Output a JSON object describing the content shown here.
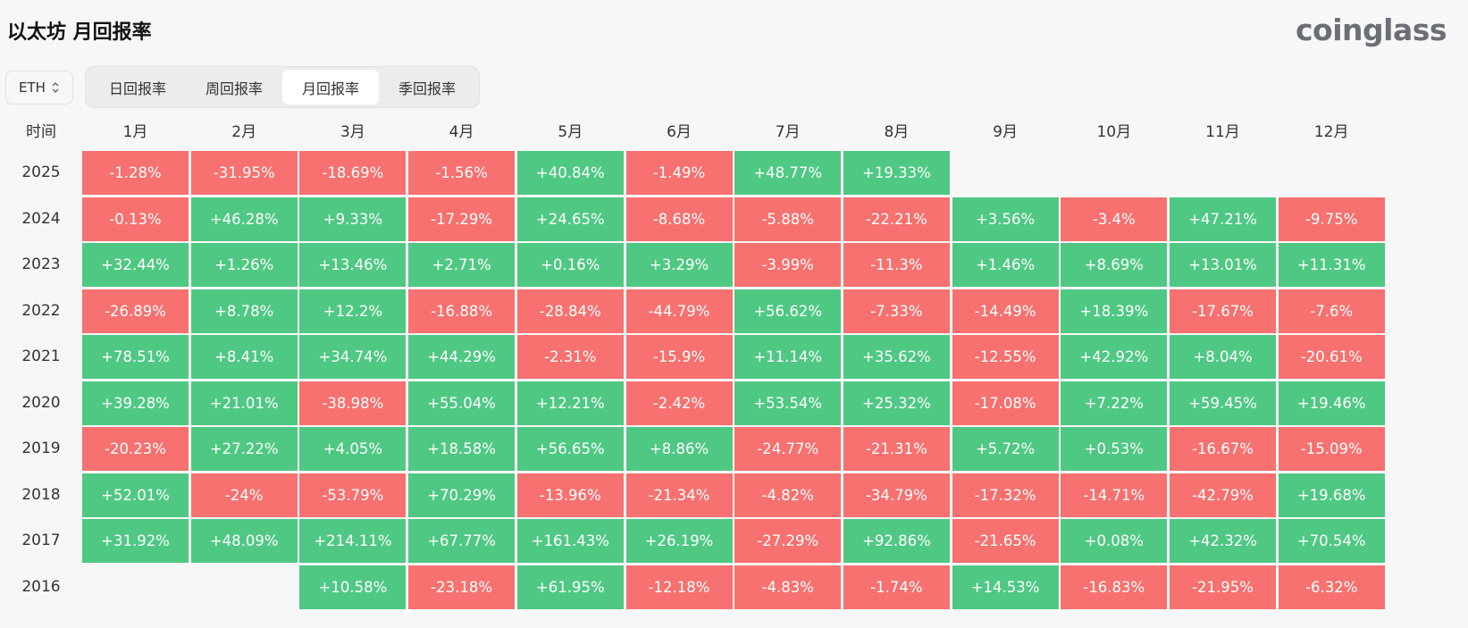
{
  "header": {
    "title": "以太坊 月回报率",
    "logo": "coinglass"
  },
  "coin_select": {
    "value": "ETH"
  },
  "tabs": [
    {
      "label": "日回报率",
      "active": false
    },
    {
      "label": "周回报率",
      "active": false
    },
    {
      "label": "月回报率",
      "active": true
    },
    {
      "label": "季回报率",
      "active": false
    }
  ],
  "table": {
    "time_label": "时间",
    "months": [
      "1月",
      "2月",
      "3月",
      "4月",
      "5月",
      "6月",
      "7月",
      "8月",
      "9月",
      "10月",
      "11月",
      "12月"
    ],
    "rows": [
      {
        "year": "2025",
        "values": [
          "-1.28%",
          "-31.95%",
          "-18.69%",
          "-1.56%",
          "+40.84%",
          "-1.49%",
          "+48.77%",
          "+19.33%",
          "",
          "",
          "",
          ""
        ]
      },
      {
        "year": "2024",
        "values": [
          "-0.13%",
          "+46.28%",
          "+9.33%",
          "-17.29%",
          "+24.65%",
          "-8.68%",
          "-5.88%",
          "-22.21%",
          "+3.56%",
          "-3.4%",
          "+47.21%",
          "-9.75%"
        ]
      },
      {
        "year": "2023",
        "values": [
          "+32.44%",
          "+1.26%",
          "+13.46%",
          "+2.71%",
          "+0.16%",
          "+3.29%",
          "-3.99%",
          "-11.3%",
          "+1.46%",
          "+8.69%",
          "+13.01%",
          "+11.31%"
        ]
      },
      {
        "year": "2022",
        "values": [
          "-26.89%",
          "+8.78%",
          "+12.2%",
          "-16.88%",
          "-28.84%",
          "-44.79%",
          "+56.62%",
          "-7.33%",
          "-14.49%",
          "+18.39%",
          "-17.67%",
          "-7.6%"
        ]
      },
      {
        "year": "2021",
        "values": [
          "+78.51%",
          "+8.41%",
          "+34.74%",
          "+44.29%",
          "-2.31%",
          "-15.9%",
          "+11.14%",
          "+35.62%",
          "-12.55%",
          "+42.92%",
          "+8.04%",
          "-20.61%"
        ]
      },
      {
        "year": "2020",
        "values": [
          "+39.28%",
          "+21.01%",
          "-38.98%",
          "+55.04%",
          "+12.21%",
          "-2.42%",
          "+53.54%",
          "+25.32%",
          "-17.08%",
          "+7.22%",
          "+59.45%",
          "+19.46%"
        ]
      },
      {
        "year": "2019",
        "values": [
          "-20.23%",
          "+27.22%",
          "+4.05%",
          "+18.58%",
          "+56.65%",
          "+8.86%",
          "-24.77%",
          "-21.31%",
          "+5.72%",
          "+0.53%",
          "-16.67%",
          "-15.09%"
        ]
      },
      {
        "year": "2018",
        "values": [
          "+52.01%",
          "-24%",
          "-53.79%",
          "+70.29%",
          "-13.96%",
          "-21.34%",
          "-4.82%",
          "-34.79%",
          "-17.32%",
          "-14.71%",
          "-42.79%",
          "+19.68%"
        ]
      },
      {
        "year": "2017",
        "values": [
          "+31.92%",
          "+48.09%",
          "+214.11%",
          "+67.77%",
          "+161.43%",
          "+26.19%",
          "-27.29%",
          "+92.86%",
          "-21.65%",
          "+0.08%",
          "+42.32%",
          "+70.54%"
        ]
      },
      {
        "year": "2016",
        "values": [
          "",
          "",
          "+10.58%",
          "-23.18%",
          "+61.95%",
          "-12.18%",
          "-4.83%",
          "-1.74%",
          "+14.53%",
          "-16.83%",
          "-21.95%",
          "-6.32%"
        ]
      }
    ]
  },
  "colors": {
    "positive": "#4fc883",
    "negative": "#f6716f"
  }
}
